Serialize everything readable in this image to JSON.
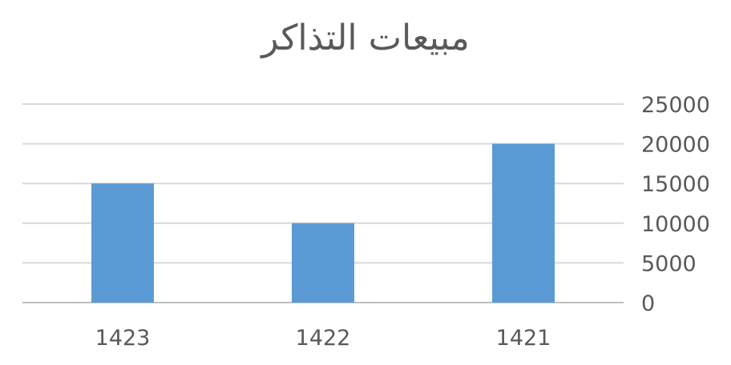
{
  "chart_data": {
    "type": "bar",
    "title": "مبيعات التذاكر",
    "categories": [
      "1421",
      "1422",
      "1423"
    ],
    "series": [
      {
        "values": [
          20000,
          10000,
          15000
        ],
        "color": "#5b9bd5"
      }
    ],
    "xlabel": "",
    "ylabel": "",
    "ylim": [
      0,
      25000
    ],
    "yticks": [
      "0",
      "5000",
      "10000",
      "15000",
      "20000",
      "25000"
    ],
    "x_direction": "right-to-left",
    "y_axis_side": "right",
    "grid": true,
    "legend": "none"
  }
}
